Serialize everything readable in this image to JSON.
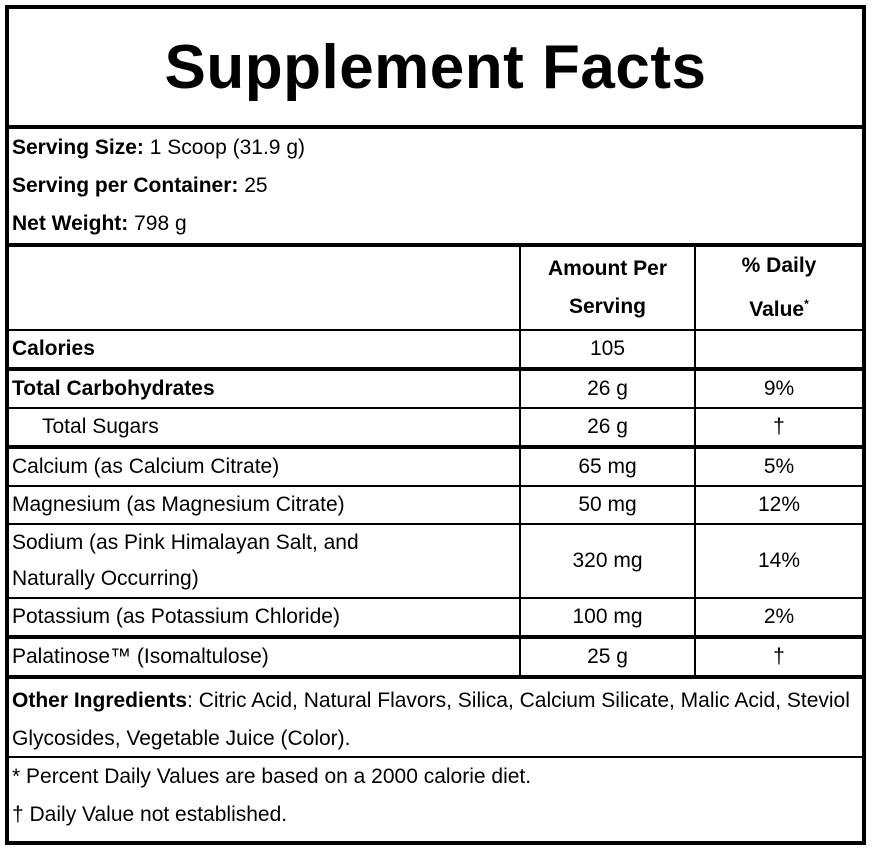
{
  "title": "Supplement Facts",
  "serving": {
    "size_label": "Serving Size:",
    "size_value": " 1 Scoop (31.9 g)",
    "per_container_label": "Serving per Container:",
    "per_container_value": " 25",
    "net_weight_label": "Net Weight:",
    "net_weight_value": " 798 g"
  },
  "table": {
    "headers": {
      "amount_line1": "Amount Per",
      "amount_line2": "Serving",
      "dv_line1": "% Daily",
      "dv_line2": "Value",
      "dv_mark": "*"
    },
    "rows": [
      {
        "name": "Calories",
        "amount": "105",
        "dv": ""
      },
      {
        "name": "Total Carbohydrates",
        "amount": "26 g",
        "dv": "9%"
      },
      {
        "name": "Total Sugars",
        "amount": "26 g",
        "dv": "†"
      },
      {
        "name": "Calcium (as Calcium Citrate)",
        "amount": "65 mg",
        "dv": "5%"
      },
      {
        "name": "Magnesium (as Magnesium Citrate)",
        "amount": "50 mg",
        "dv": "12%"
      },
      {
        "name_line1": "Sodium (as Pink Himalayan Salt, and",
        "name_line2": "Naturally Occurring)",
        "amount": "320 mg",
        "dv": "14%"
      },
      {
        "name": "Potassium (as Potassium Chloride)",
        "amount": "100 mg",
        "dv": "2%"
      },
      {
        "name": "Palatinose™ (Isomaltulose)",
        "amount": "25 g",
        "dv": "†"
      }
    ]
  },
  "other_ingredients": {
    "label": "Other Ingredients",
    "text": ": Citric Acid, Natural Flavors, Silica, Calcium Silicate, Malic Acid, Steviol Glycosides, Vegetable Juice (Color)."
  },
  "footnotes": [
    "* Percent Daily Values are based on a 2000 calorie diet.",
    "† Daily Value not established."
  ]
}
